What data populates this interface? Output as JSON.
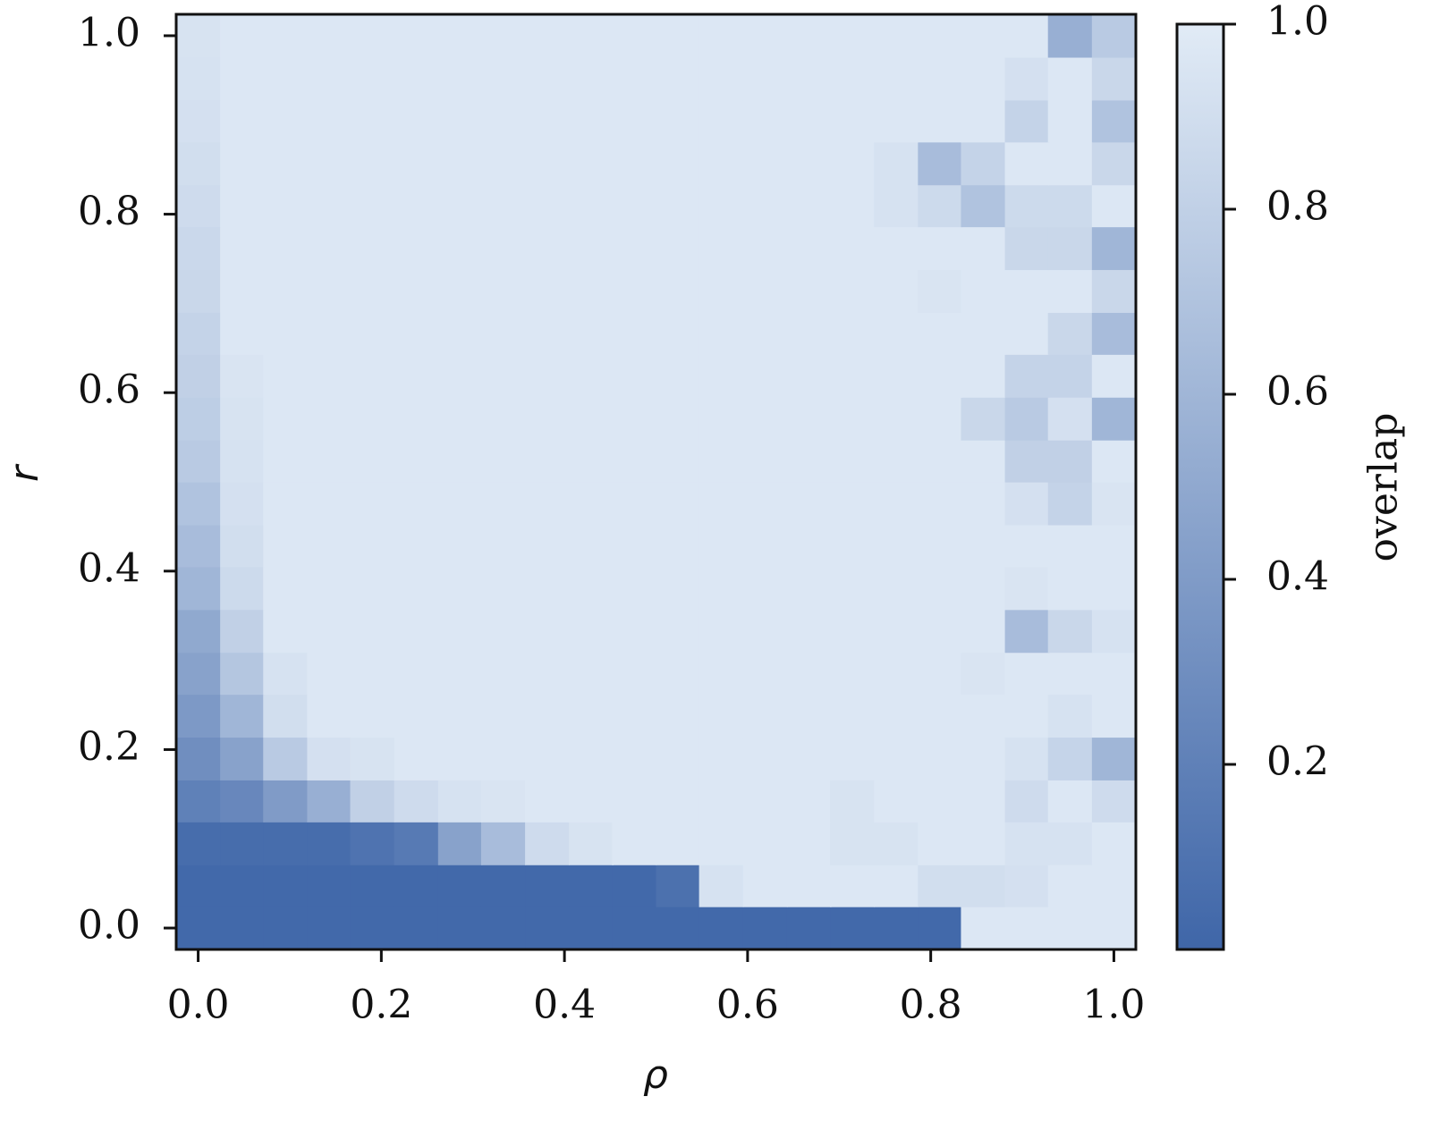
{
  "chart_data": {
    "type": "heatmap",
    "xlabel": "ρ",
    "ylabel": "r",
    "colorbar_label": "overlap",
    "x": [
      0,
      0.048,
      0.095,
      0.143,
      0.19,
      0.238,
      0.286,
      0.333,
      0.381,
      0.429,
      0.476,
      0.524,
      0.571,
      0.619,
      0.667,
      0.714,
      0.762,
      0.81,
      0.857,
      0.905,
      0.952,
      1
    ],
    "y": [
      0,
      0.048,
      0.095,
      0.143,
      0.19,
      0.238,
      0.286,
      0.333,
      0.381,
      0.429,
      0.476,
      0.524,
      0.571,
      0.619,
      0.667,
      0.714,
      0.762,
      0.81,
      0.857,
      0.905,
      0.952,
      1
    ],
    "xlim": [
      -0.024,
      1.024
    ],
    "ylim": [
      -0.024,
      1.024
    ],
    "xticks": [
      {
        "value": 0,
        "label": "0.0"
      },
      0.2,
      0.4,
      0.6,
      0.8,
      {
        "value": 1,
        "label": "1.0"
      }
    ],
    "yticks": [
      {
        "value": 0,
        "label": "0.0"
      },
      0.2,
      0.4,
      0.6,
      0.8,
      {
        "value": 1,
        "label": "1.0"
      }
    ],
    "zlim": [
      0,
      1
    ],
    "zticks": [
      0.2,
      0.4,
      0.6,
      0.8,
      {
        "value": 1,
        "label": "1.0"
      }
    ],
    "colormap": [
      "#3f66a8",
      "#e1ebf6"
    ],
    "z": [
      [
        0.02,
        0.02,
        0.02,
        0.02,
        0.02,
        0.02,
        0.02,
        0.02,
        0.02,
        0.02,
        0.02,
        0.02,
        0.02,
        0.02,
        0.02,
        0.02,
        0.02,
        0.02,
        0.97,
        0.97,
        0.97,
        0.97
      ],
      [
        0.02,
        0.02,
        0.02,
        0.02,
        0.02,
        0.02,
        0.02,
        0.02,
        0.02,
        0.02,
        0.02,
        0.08,
        0.93,
        0.97,
        0.97,
        0.97,
        0.97,
        0.9,
        0.9,
        0.92,
        0.97,
        0.97
      ],
      [
        0.05,
        0.05,
        0.05,
        0.05,
        0.1,
        0.15,
        0.45,
        0.65,
        0.88,
        0.94,
        0.97,
        0.97,
        0.97,
        0.97,
        0.97,
        0.94,
        0.94,
        0.97,
        0.97,
        0.93,
        0.93,
        0.97
      ],
      [
        0.2,
        0.25,
        0.4,
        0.55,
        0.8,
        0.88,
        0.93,
        0.95,
        0.97,
        0.97,
        0.97,
        0.97,
        0.97,
        0.97,
        0.97,
        0.94,
        0.97,
        0.97,
        0.97,
        0.88,
        0.97,
        0.88
      ],
      [
        0.3,
        0.45,
        0.75,
        0.92,
        0.94,
        0.97,
        0.97,
        0.97,
        0.97,
        0.97,
        0.97,
        0.97,
        0.97,
        0.97,
        0.97,
        0.97,
        0.97,
        0.97,
        0.97,
        0.93,
        0.83,
        0.6
      ],
      [
        0.38,
        0.6,
        0.9,
        0.97,
        0.97,
        0.97,
        0.97,
        0.97,
        0.97,
        0.97,
        0.97,
        0.97,
        0.97,
        0.97,
        0.97,
        0.97,
        0.97,
        0.97,
        0.97,
        0.97,
        0.93,
        0.97
      ],
      [
        0.45,
        0.72,
        0.93,
        0.97,
        0.97,
        0.97,
        0.97,
        0.97,
        0.97,
        0.97,
        0.97,
        0.97,
        0.97,
        0.97,
        0.97,
        0.97,
        0.97,
        0.97,
        0.95,
        0.97,
        0.97,
        0.97
      ],
      [
        0.5,
        0.8,
        0.97,
        0.97,
        0.97,
        0.97,
        0.97,
        0.97,
        0.97,
        0.97,
        0.97,
        0.97,
        0.97,
        0.97,
        0.97,
        0.97,
        0.97,
        0.97,
        0.97,
        0.65,
        0.85,
        0.93
      ],
      [
        0.6,
        0.87,
        0.97,
        0.97,
        0.97,
        0.97,
        0.97,
        0.97,
        0.97,
        0.97,
        0.97,
        0.97,
        0.97,
        0.97,
        0.97,
        0.97,
        0.97,
        0.97,
        0.97,
        0.95,
        0.97,
        0.97
      ],
      [
        0.65,
        0.9,
        0.97,
        0.97,
        0.97,
        0.97,
        0.97,
        0.97,
        0.97,
        0.97,
        0.97,
        0.97,
        0.97,
        0.97,
        0.97,
        0.97,
        0.97,
        0.97,
        0.97,
        0.97,
        0.97,
        0.97
      ],
      [
        0.7,
        0.92,
        0.97,
        0.97,
        0.97,
        0.97,
        0.97,
        0.97,
        0.97,
        0.97,
        0.97,
        0.97,
        0.97,
        0.97,
        0.97,
        0.97,
        0.97,
        0.97,
        0.97,
        0.92,
        0.82,
        0.95
      ],
      [
        0.75,
        0.93,
        0.97,
        0.97,
        0.97,
        0.97,
        0.97,
        0.97,
        0.97,
        0.97,
        0.97,
        0.97,
        0.97,
        0.97,
        0.97,
        0.97,
        0.97,
        0.97,
        0.97,
        0.8,
        0.8,
        0.97
      ],
      [
        0.78,
        0.94,
        0.97,
        0.97,
        0.97,
        0.97,
        0.97,
        0.97,
        0.97,
        0.97,
        0.97,
        0.97,
        0.97,
        0.97,
        0.97,
        0.97,
        0.97,
        0.97,
        0.85,
        0.75,
        0.92,
        0.6
      ],
      [
        0.8,
        0.95,
        0.97,
        0.97,
        0.97,
        0.97,
        0.97,
        0.97,
        0.97,
        0.97,
        0.97,
        0.97,
        0.97,
        0.97,
        0.97,
        0.97,
        0.97,
        0.97,
        0.97,
        0.82,
        0.82,
        0.97
      ],
      [
        0.82,
        0.97,
        0.97,
        0.97,
        0.97,
        0.97,
        0.97,
        0.97,
        0.97,
        0.97,
        0.97,
        0.97,
        0.97,
        0.97,
        0.97,
        0.97,
        0.97,
        0.97,
        0.97,
        0.97,
        0.85,
        0.65
      ],
      [
        0.85,
        0.97,
        0.97,
        0.97,
        0.97,
        0.97,
        0.97,
        0.97,
        0.97,
        0.97,
        0.97,
        0.97,
        0.97,
        0.97,
        0.97,
        0.97,
        0.97,
        0.95,
        0.97,
        0.97,
        0.97,
        0.85
      ],
      [
        0.86,
        0.97,
        0.97,
        0.97,
        0.97,
        0.97,
        0.97,
        0.97,
        0.97,
        0.97,
        0.97,
        0.97,
        0.97,
        0.97,
        0.97,
        0.97,
        0.97,
        0.97,
        0.97,
        0.85,
        0.85,
        0.6
      ],
      [
        0.88,
        0.97,
        0.97,
        0.97,
        0.97,
        0.97,
        0.97,
        0.97,
        0.97,
        0.97,
        0.97,
        0.97,
        0.97,
        0.97,
        0.97,
        0.97,
        0.93,
        0.87,
        0.7,
        0.87,
        0.87,
        0.97
      ],
      [
        0.9,
        0.97,
        0.97,
        0.97,
        0.97,
        0.97,
        0.97,
        0.97,
        0.97,
        0.97,
        0.97,
        0.97,
        0.97,
        0.97,
        0.97,
        0.97,
        0.93,
        0.65,
        0.82,
        0.97,
        0.97,
        0.85
      ],
      [
        0.92,
        0.97,
        0.97,
        0.97,
        0.97,
        0.97,
        0.97,
        0.97,
        0.97,
        0.97,
        0.97,
        0.97,
        0.97,
        0.97,
        0.97,
        0.97,
        0.97,
        0.97,
        0.97,
        0.82,
        0.97,
        0.7
      ],
      [
        0.93,
        0.97,
        0.97,
        0.97,
        0.97,
        0.97,
        0.97,
        0.97,
        0.97,
        0.97,
        0.97,
        0.97,
        0.97,
        0.97,
        0.97,
        0.97,
        0.97,
        0.97,
        0.97,
        0.92,
        0.97,
        0.85
      ],
      [
        0.94,
        0.97,
        0.97,
        0.97,
        0.97,
        0.97,
        0.97,
        0.97,
        0.97,
        0.97,
        0.97,
        0.97,
        0.97,
        0.97,
        0.97,
        0.97,
        0.97,
        0.97,
        0.97,
        0.97,
        0.55,
        0.75
      ]
    ]
  }
}
